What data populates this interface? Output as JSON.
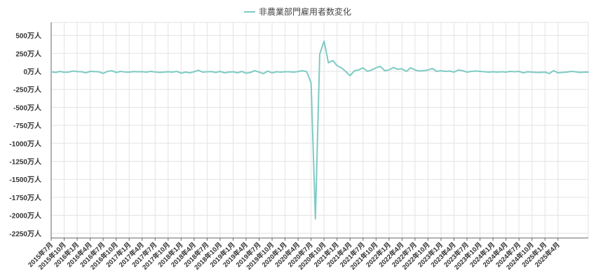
{
  "chart_data": {
    "type": "line",
    "title": "",
    "xlabel": "",
    "ylabel": "",
    "ylim": [
      -2250,
      700
    ],
    "grid": true,
    "legend_position": "top",
    "series_color": "#7ecbc4",
    "y_ticks": [
      {
        "value": 500,
        "label": "500万人"
      },
      {
        "value": 250,
        "label": "250万人"
      },
      {
        "value": 0,
        "label": "0万人"
      },
      {
        "value": -250,
        "label": "-250万人"
      },
      {
        "value": -500,
        "label": "-500万人"
      },
      {
        "value": -750,
        "label": "-750万人"
      },
      {
        "value": -1000,
        "label": "-1000万人"
      },
      {
        "value": -1250,
        "label": "-1250万人"
      },
      {
        "value": -1500,
        "label": "-1500万人"
      },
      {
        "value": -1750,
        "label": "-1750万人"
      },
      {
        "value": -2000,
        "label": "-2000万人"
      },
      {
        "value": -2250,
        "label": "-2250万人"
      }
    ],
    "x_tick_labels": [
      "2015年7月",
      "2015年10月",
      "2016年1月",
      "2016年4月",
      "2016年7月",
      "2016年10月",
      "2017年1月",
      "2017年4月",
      "2017年7月",
      "2017年10月",
      "2018年1月",
      "2018年4月",
      "2018年7月",
      "2018年10月",
      "2019年1月",
      "2019年4月",
      "2019年7月",
      "2019年10月",
      "2020年1月",
      "2020年4月",
      "2020年7月",
      "2020年10月",
      "2021年1月",
      "2021年4月",
      "2021年7月",
      "2021年10月",
      "2022年1月",
      "2022年4月",
      "2022年7月",
      "2022年10月",
      "2023年1月",
      "2023年4月",
      "2023年7月",
      "2023年10月",
      "2024年1月",
      "2024年4月",
      "2024年7月",
      "2024年10月",
      "2025年1月",
      "2025年4月"
    ],
    "x_start": "2015年7月",
    "series": [
      {
        "name": "非農業部門雇用者数変化",
        "values": [
          -5,
          -15,
          0,
          -12,
          -10,
          5,
          -2,
          -5,
          -20,
          0,
          -2,
          -5,
          -28,
          0,
          10,
          -15,
          0,
          -8,
          -10,
          -2,
          -5,
          -4,
          -10,
          0,
          -8,
          -15,
          -10,
          -5,
          -10,
          0,
          -25,
          -10,
          -20,
          -5,
          15,
          -10,
          -5,
          -2,
          -15,
          0,
          -20,
          -10,
          -5,
          -20,
          0,
          -25,
          -15,
          10,
          -10,
          -30,
          5,
          -20,
          -5,
          -10,
          -5,
          -5,
          -10,
          -2,
          10,
          -5,
          -160,
          -2050,
          240,
          420,
          120,
          150,
          80,
          50,
          0,
          -60,
          10,
          20,
          50,
          0,
          20,
          50,
          70,
          10,
          20,
          55,
          30,
          35,
          0,
          50,
          20,
          5,
          10,
          20,
          40,
          0,
          10,
          0,
          5,
          -10,
          20,
          10,
          -10,
          0,
          5,
          0,
          -5,
          -10,
          -5,
          -10,
          -5,
          -10,
          0,
          -5,
          0,
          -20,
          -5,
          -10,
          -15,
          -15,
          -10,
          -30,
          10,
          -20,
          -15,
          -10,
          0,
          -5,
          -15,
          -10,
          -10
        ]
      }
    ]
  }
}
